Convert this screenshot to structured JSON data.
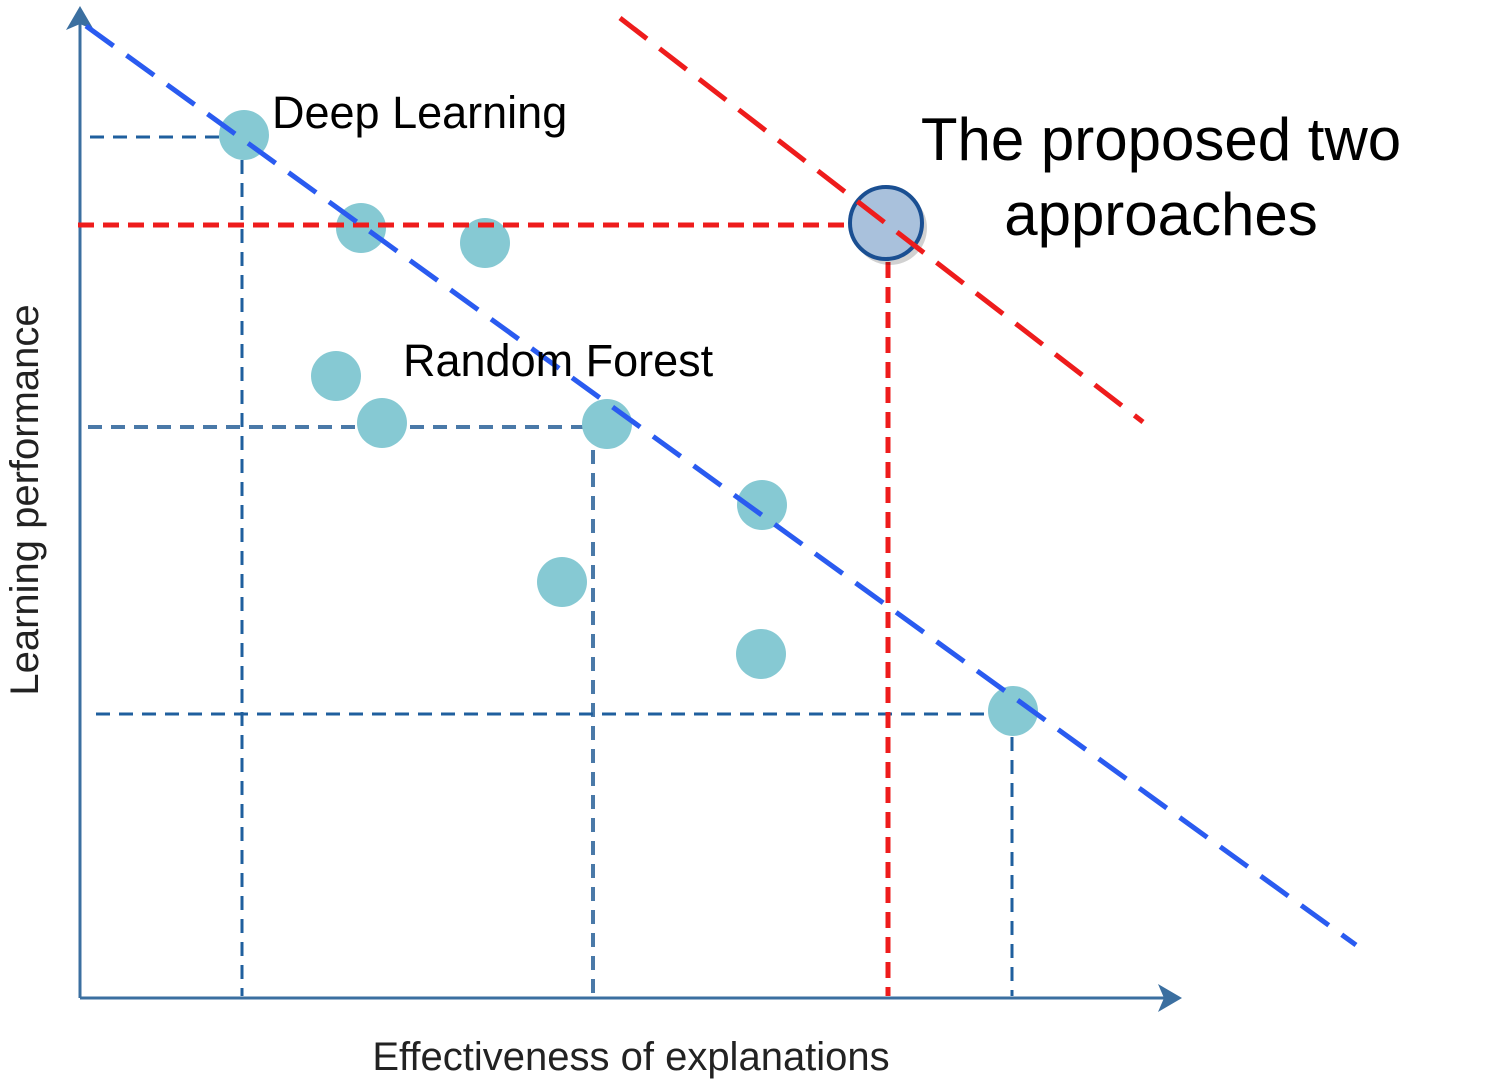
{
  "labels": {
    "deep_learning": "Deep Learning",
    "random_forest": "Random Forest",
    "proposed_line1": "The proposed two",
    "proposed_line2": "approaches"
  },
  "axes": {
    "x_label": "Effectiveness of explanations",
    "y_label": "Learning performance"
  },
  "colors": {
    "axis": "#3b6fa0",
    "points": "#86c9d3",
    "blue_dash": "#2a5bf0",
    "red_dash": "#ee1c1c",
    "guide_dash": "#1f5f9e",
    "highlight_fill": "#a9c1dc",
    "highlight_stroke": "#1a4f92"
  }
}
